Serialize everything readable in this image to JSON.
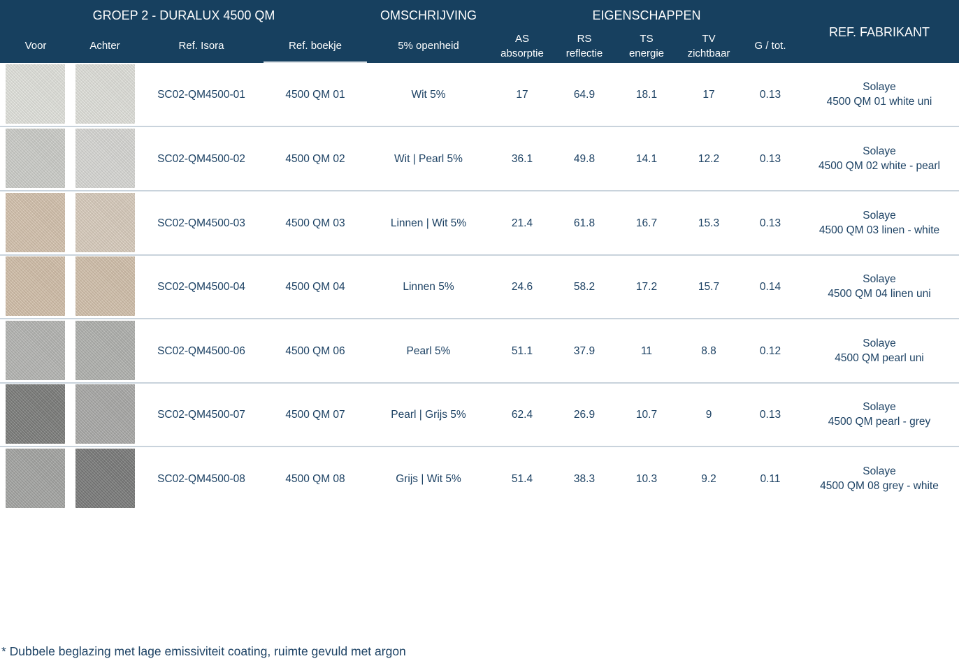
{
  "header": {
    "group_title": "GROEP 2 - DURALUX 4500 QM",
    "omschrijving": "OMSCHRIJVING",
    "eigenschappen": "EIGENSCHAPPEN",
    "ref_fabrikant": "REF. FABRIKANT",
    "voor": "Voor",
    "achter": "Achter",
    "ref_isora": "Ref. Isora",
    "ref_boekje": "Ref. boekje",
    "openheid": "5% openheid",
    "as_code": "AS",
    "as_name": "absorptie",
    "rs_code": "RS",
    "rs_name": "reflectie",
    "ts_code": "TS",
    "ts_name": "energie",
    "tv_code": "TV",
    "tv_name": "zichtbaar",
    "g_tot": "G / tot."
  },
  "colors": {
    "header_bg": "#17405f",
    "text": "#1d4264",
    "separator": "#c9d3dc"
  },
  "rows": [
    {
      "ref_isora": "SC02-QM4500-01",
      "ref_boekje": "4500 QM 01",
      "omschrijving": "Wit 5%",
      "as": "17",
      "rs": "64.9",
      "ts": "18.1",
      "tv": "17",
      "g": "0.13",
      "fab_brand": "Solaye",
      "fab_ref": "4500 QM 01 white uni",
      "front_color": "#e6e7e1",
      "back_color": "#e4e5df"
    },
    {
      "ref_isora": "SC02-QM4500-02",
      "ref_boekje": "4500 QM 02",
      "omschrijving": "Wit | Pearl 5%",
      "as": "36.1",
      "rs": "49.8",
      "ts": "14.1",
      "tv": "12.2",
      "g": "0.13",
      "fab_brand": "Solaye",
      "fab_ref": "4500 QM 02 white - pearl",
      "front_color": "#d0d1cd",
      "back_color": "#dcdcd8"
    },
    {
      "ref_isora": "SC02-QM4500-03",
      "ref_boekje": "4500 QM 03",
      "omschrijving": "Linnen | Wit 5%",
      "as": "21.4",
      "rs": "61.8",
      "ts": "16.7",
      "tv": "15.3",
      "g": "0.13",
      "fab_brand": "Solaye",
      "fab_ref": "4500 QM 03 linen - white",
      "front_color": "#d8c6b1",
      "back_color": "#ddd0c1"
    },
    {
      "ref_isora": "SC02-QM4500-04",
      "ref_boekje": "4500 QM 04",
      "omschrijving": "Linnen 5%",
      "as": "24.6",
      "rs": "58.2",
      "ts": "17.2",
      "tv": "15.7",
      "g": "0.14",
      "fab_brand": "Solaye",
      "fab_ref": "4500 QM 04 linen uni",
      "front_color": "#d6c3ad",
      "back_color": "#d6c4af"
    },
    {
      "ref_isora": "SC02-QM4500-06",
      "ref_boekje": "4500 QM 06",
      "omschrijving": "Pearl 5%",
      "as": "51.1",
      "rs": "37.9",
      "ts": "11",
      "tv": "8.8",
      "g": "0.12",
      "fab_brand": "Solaye",
      "fab_ref": "4500 QM pearl uni",
      "front_color": "#b8b9b6",
      "back_color": "#b4b5b2"
    },
    {
      "ref_isora": "SC02-QM4500-07",
      "ref_boekje": "4500 QM 07",
      "omschrijving": "Pearl | Grijs 5%",
      "as": "62.4",
      "rs": "26.9",
      "ts": "10.7",
      "tv": "9",
      "g": "0.13",
      "fab_brand": "Solaye",
      "fab_ref": "4500 QM pearl - grey",
      "front_color": "#7f807e",
      "back_color": "#adadab"
    },
    {
      "ref_isora": "SC02-QM4500-08",
      "ref_boekje": "4500 QM 08",
      "omschrijving": "Grijs | Wit 5%",
      "as": "51.4",
      "rs": "38.3",
      "ts": "10.3",
      "tv": "9.2",
      "g": "0.11",
      "fab_brand": "Solaye",
      "fab_ref": "4500 QM 08 grey - white",
      "front_color": "#a7a8a6",
      "back_color": "#7d7e7d"
    }
  ],
  "footnote": "* Dubbele beglazing met lage emissiviteit coating, ruimte gevuld met argon"
}
